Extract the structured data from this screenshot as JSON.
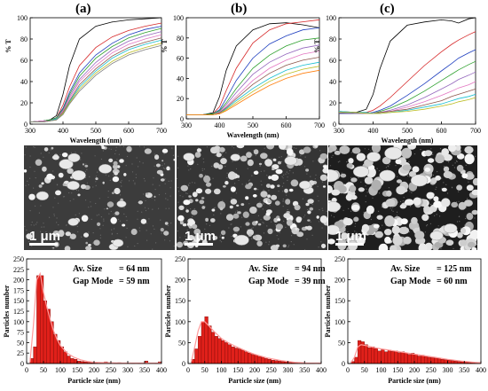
{
  "panels": [
    {
      "letter": "(a)",
      "avsize_label": "Av. Size",
      "avsize_value": "= 64 nm",
      "gap_label": "Gap Mode",
      "gap_value": "= 59 nm",
      "scale_text": "1 μm"
    },
    {
      "letter": "(b)",
      "avsize_label": "Av. Size",
      "avsize_value": "= 94 nm",
      "gap_label": "Gap Mode",
      "gap_value": "= 39 nm",
      "scale_text": "1 μm"
    },
    {
      "letter": "(c)",
      "avsize_label": "Av. Size",
      "avsize_value": "= 125 nm",
      "gap_label": "Gap Mode",
      "gap_value": "= 60 nm",
      "scale_text": "1 μm"
    }
  ],
  "chart_data": [
    {
      "type": "line",
      "panel": "(a)",
      "xlabel": "Wavelength (nm)",
      "ylabel": "% T",
      "xlim": [
        300,
        700
      ],
      "ylim": [
        0,
        100
      ],
      "xticks": [
        300,
        400,
        500,
        600,
        700
      ],
      "yticks": [
        0,
        20,
        40,
        60,
        80,
        100
      ],
      "x": [
        300,
        340,
        360,
        380,
        400,
        420,
        450,
        500,
        550,
        600,
        650,
        700
      ],
      "series": [
        {
          "color": "#000000",
          "values": [
            2,
            3,
            4,
            8,
            28,
            55,
            80,
            92,
            96,
            98,
            99,
            100
          ]
        },
        {
          "color": "#d62728",
          "values": [
            2,
            3,
            4,
            6,
            18,
            35,
            55,
            72,
            82,
            88,
            92,
            95
          ]
        },
        {
          "color": "#1f3fbf",
          "values": [
            2,
            3,
            4,
            6,
            15,
            30,
            48,
            65,
            76,
            84,
            89,
            92
          ]
        },
        {
          "color": "#2ca02c",
          "values": [
            2,
            3,
            4,
            6,
            14,
            28,
            45,
            62,
            73,
            81,
            86,
            90
          ]
        },
        {
          "color": "#9467bd",
          "values": [
            2,
            3,
            3,
            5,
            13,
            26,
            42,
            58,
            70,
            78,
            83,
            87
          ]
        },
        {
          "color": "#e377c2",
          "values": [
            2,
            3,
            3,
            5,
            12,
            24,
            40,
            55,
            67,
            75,
            80,
            84
          ]
        },
        {
          "color": "#8c564b",
          "values": [
            2,
            2,
            3,
            5,
            11,
            22,
            37,
            52,
            64,
            72,
            77,
            81
          ]
        },
        {
          "color": "#17becf",
          "values": [
            2,
            2,
            3,
            5,
            10,
            21,
            35,
            50,
            62,
            70,
            75,
            79
          ]
        },
        {
          "color": "#bcbd22",
          "values": [
            2,
            2,
            3,
            4,
            10,
            20,
            33,
            48,
            59,
            67,
            72,
            76
          ]
        },
        {
          "color": "#7f7f7f",
          "values": [
            2,
            2,
            3,
            4,
            9,
            19,
            31,
            46,
            57,
            65,
            70,
            74
          ]
        }
      ]
    },
    {
      "type": "line",
      "panel": "(b)",
      "xlabel": "Wavelength (nm)",
      "ylabel": "% T",
      "xlim": [
        300,
        700
      ],
      "ylim": [
        0,
        100
      ],
      "xticks": [
        300,
        400,
        500,
        600,
        700
      ],
      "yticks": [
        0,
        20,
        40,
        60,
        80,
        100
      ],
      "x": [
        300,
        350,
        380,
        400,
        420,
        450,
        500,
        550,
        600,
        650,
        700
      ],
      "series": [
        {
          "color": "#000000",
          "values": [
            4,
            4,
            6,
            22,
            48,
            72,
            88,
            94,
            95,
            93,
            90
          ]
        },
        {
          "color": "#d62728",
          "values": [
            4,
            4,
            5,
            12,
            28,
            50,
            75,
            88,
            94,
            96,
            98
          ]
        },
        {
          "color": "#1f3fbf",
          "values": [
            4,
            4,
            5,
            9,
            20,
            38,
            60,
            74,
            82,
            88,
            90
          ]
        },
        {
          "color": "#2ca02c",
          "values": [
            4,
            4,
            5,
            8,
            16,
            30,
            50,
            63,
            72,
            78,
            80
          ]
        },
        {
          "color": "#9467bd",
          "values": [
            4,
            4,
            4,
            7,
            14,
            26,
            44,
            56,
            64,
            70,
            73
          ]
        },
        {
          "color": "#e377c2",
          "values": [
            4,
            4,
            4,
            6,
            12,
            22,
            38,
            50,
            58,
            64,
            67
          ]
        },
        {
          "color": "#8c564b",
          "values": [
            4,
            4,
            4,
            6,
            11,
            20,
            34,
            45,
            53,
            58,
            61
          ]
        },
        {
          "color": "#17becf",
          "values": [
            4,
            4,
            4,
            5,
            10,
            18,
            30,
            40,
            48,
            53,
            56
          ]
        },
        {
          "color": "#bcbd22",
          "values": [
            4,
            4,
            4,
            5,
            9,
            16,
            27,
            37,
            44,
            49,
            52
          ]
        },
        {
          "color": "#ff7f0e",
          "values": [
            4,
            4,
            4,
            5,
            8,
            14,
            24,
            33,
            40,
            45,
            48
          ]
        }
      ]
    },
    {
      "type": "line",
      "panel": "(c)",
      "xlabel": "Wavelength (nm)",
      "ylabel": "% T",
      "xlim": [
        300,
        700
      ],
      "ylim": [
        0,
        100
      ],
      "xticks": [
        300,
        400,
        500,
        600,
        700
      ],
      "yticks": [
        0,
        20,
        40,
        60,
        80,
        100
      ],
      "x": [
        300,
        350,
        380,
        400,
        420,
        450,
        500,
        550,
        600,
        630,
        650,
        680,
        700
      ],
      "series": [
        {
          "color": "#000000",
          "values": [
            10,
            11,
            14,
            28,
            52,
            78,
            93,
            96,
            98,
            97,
            95,
            99,
            100
          ]
        },
        {
          "color": "#d62728",
          "values": [
            10,
            10,
            11,
            13,
            17,
            25,
            40,
            55,
            68,
            75,
            79,
            84,
            87
          ]
        },
        {
          "color": "#1f3fbf",
          "values": [
            10,
            10,
            10,
            11,
            13,
            17,
            27,
            38,
            50,
            57,
            62,
            67,
            70
          ]
        },
        {
          "color": "#2ca02c",
          "values": [
            11,
            10,
            10,
            10,
            12,
            15,
            22,
            31,
            41,
            47,
            51,
            56,
            59
          ]
        },
        {
          "color": "#9467bd",
          "values": [
            11,
            10,
            10,
            10,
            11,
            13,
            18,
            25,
            33,
            38,
            42,
            46,
            49
          ]
        },
        {
          "color": "#e377c2",
          "values": [
            12,
            11,
            10,
            10,
            11,
            12,
            16,
            21,
            27,
            31,
            34,
            37,
            40
          ]
        },
        {
          "color": "#8c564b",
          "values": [
            12,
            11,
            11,
            10,
            11,
            12,
            14,
            18,
            22,
            26,
            28,
            31,
            33
          ]
        },
        {
          "color": "#17becf",
          "values": [
            12,
            11,
            11,
            10,
            10,
            11,
            13,
            16,
            19,
            22,
            24,
            26,
            28
          ]
        },
        {
          "color": "#bcbd22",
          "values": [
            11,
            11,
            10,
            10,
            10,
            11,
            12,
            14,
            17,
            19,
            21,
            23,
            25
          ]
        }
      ]
    },
    {
      "type": "bar",
      "panel": "(a)",
      "xlabel": "Particle size (nm)",
      "ylabel": "Particles number",
      "xlim": [
        0,
        400
      ],
      "ylim": [
        0,
        250
      ],
      "xticks": [
        0,
        50,
        100,
        150,
        200,
        250,
        300,
        350,
        400
      ],
      "yticks": [
        0,
        25,
        50,
        75,
        100,
        125,
        150,
        175,
        200,
        225,
        250
      ],
      "bin_width": 10,
      "bin_starts": [
        10,
        20,
        30,
        40,
        50,
        60,
        70,
        80,
        90,
        100,
        110,
        120,
        130,
        140,
        150,
        160,
        170,
        180,
        190,
        200,
        210,
        220,
        230,
        240,
        250,
        260,
        270,
        280,
        290,
        300,
        310,
        320,
        330,
        340,
        350,
        360,
        370,
        380,
        390
      ],
      "values": [
        12,
        40,
        210,
        210,
        150,
        130,
        100,
        70,
        55,
        40,
        28,
        18,
        12,
        10,
        6,
        5,
        4,
        3,
        2,
        2,
        1,
        2,
        4,
        1,
        0,
        1,
        2,
        0,
        0,
        0,
        1,
        0,
        1,
        0,
        6,
        0,
        0,
        1,
        4
      ],
      "fit_x": [
        10,
        20,
        30,
        40,
        50,
        60,
        70,
        80,
        90,
        100,
        120,
        140,
        160,
        180,
        200,
        240,
        280,
        320,
        360,
        400
      ],
      "fit_y": [
        3,
        90,
        200,
        215,
        170,
        135,
        105,
        78,
        58,
        43,
        25,
        15,
        9,
        5,
        3,
        2,
        1,
        1,
        1,
        1
      ]
    },
    {
      "type": "bar",
      "panel": "(b)",
      "xlabel": "Particle size (nm)",
      "ylabel": "Particles number",
      "xlim": [
        0,
        400
      ],
      "ylim": [
        0,
        250
      ],
      "xticks": [
        0,
        50,
        100,
        150,
        200,
        250,
        300,
        350,
        400
      ],
      "yticks": [
        0,
        50,
        100,
        150,
        200,
        250
      ],
      "bin_width": 10,
      "bin_starts": [
        10,
        20,
        30,
        40,
        50,
        60,
        70,
        80,
        90,
        100,
        110,
        120,
        130,
        140,
        150,
        160,
        170,
        180,
        190,
        200,
        210,
        220,
        230,
        240,
        250,
        260,
        270,
        280,
        290,
        300,
        310,
        320,
        330,
        340,
        350,
        360,
        370,
        380,
        390
      ],
      "values": [
        10,
        35,
        65,
        100,
        112,
        90,
        75,
        65,
        60,
        55,
        50,
        45,
        40,
        37,
        35,
        32,
        28,
        25,
        22,
        20,
        17,
        15,
        12,
        10,
        8,
        7,
        6,
        5,
        4,
        3,
        3,
        2,
        2,
        1,
        1,
        1,
        1,
        0,
        1
      ],
      "fit_x": [
        10,
        20,
        30,
        40,
        50,
        60,
        80,
        100,
        120,
        140,
        160,
        180,
        200,
        240,
        280,
        320,
        360,
        400
      ],
      "fit_y": [
        5,
        40,
        78,
        100,
        100,
        92,
        75,
        60,
        50,
        42,
        35,
        28,
        22,
        13,
        7,
        3,
        1,
        1
      ]
    },
    {
      "type": "bar",
      "panel": "(c)",
      "xlabel": "Particle size (nm)",
      "ylabel": "Particles number",
      "xlim": [
        0,
        400
      ],
      "ylim": [
        0,
        250
      ],
      "xticks": [
        0,
        50,
        100,
        150,
        200,
        250,
        300,
        350,
        400
      ],
      "yticks": [
        0,
        50,
        100,
        150,
        200,
        250
      ],
      "bin_width": 10,
      "bin_starts": [
        10,
        20,
        30,
        40,
        50,
        60,
        70,
        80,
        90,
        100,
        110,
        120,
        130,
        140,
        150,
        160,
        170,
        180,
        190,
        200,
        210,
        220,
        230,
        240,
        250,
        260,
        270,
        280,
        290,
        300,
        310,
        320,
        330,
        340,
        350,
        360,
        370,
        380,
        390
      ],
      "values": [
        5,
        15,
        55,
        52,
        45,
        38,
        40,
        36,
        30,
        33,
        28,
        32,
        29,
        30,
        26,
        28,
        25,
        22,
        25,
        22,
        18,
        20,
        17,
        15,
        14,
        13,
        12,
        10,
        9,
        8,
        7,
        6,
        5,
        5,
        4,
        3,
        3,
        2,
        2
      ],
      "fit_x": [
        10,
        20,
        30,
        40,
        60,
        80,
        100,
        140,
        180,
        220,
        260,
        300,
        340,
        380,
        400
      ],
      "fit_y": [
        3,
        15,
        40,
        45,
        42,
        38,
        35,
        30,
        25,
        20,
        15,
        10,
        6,
        3,
        2
      ]
    }
  ]
}
